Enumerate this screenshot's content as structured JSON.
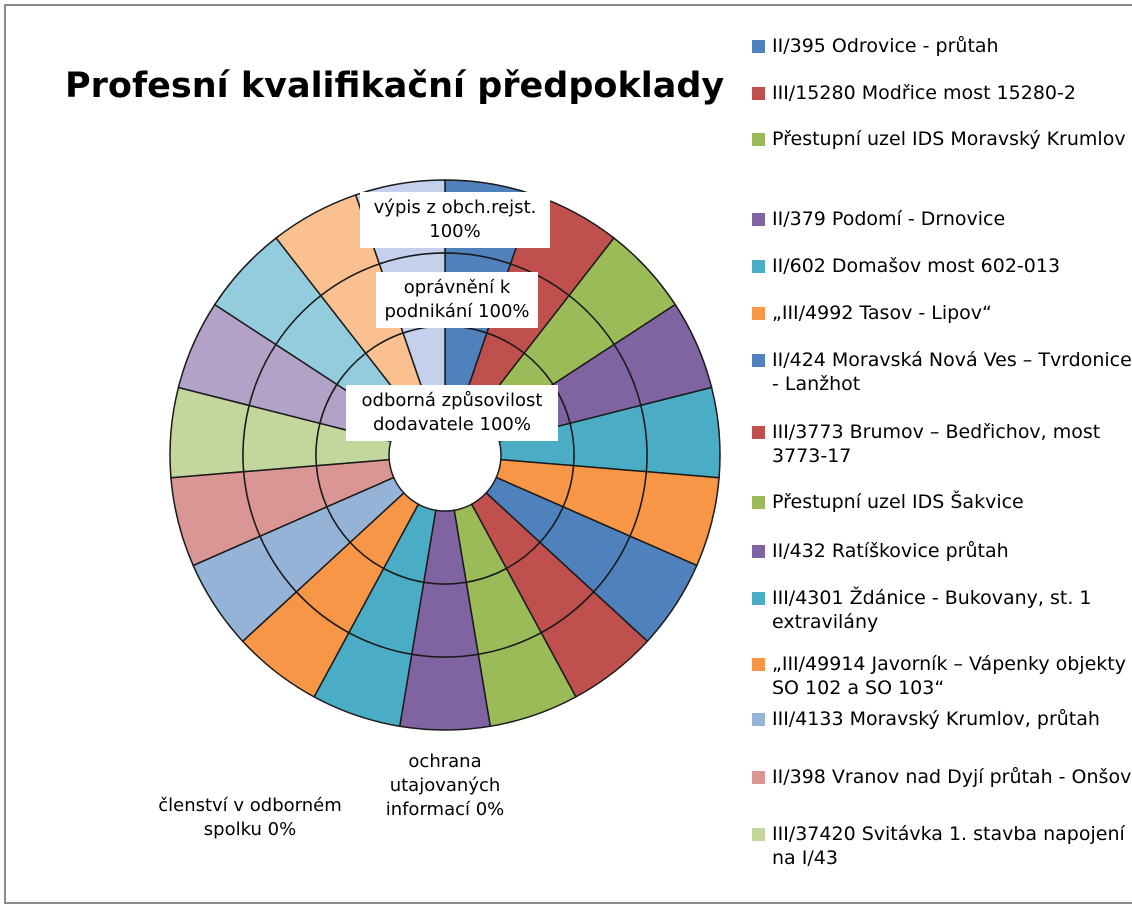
{
  "chart_data": {
    "type": "doughnut",
    "title": "Profesní kvalifikační předpoklady",
    "categories": [
      "II/395 Odrovice - průtah",
      "III/15280 Modřice most 15280-2",
      "Přestupní uzel IDS Moravský Krumlov",
      "II/379 Podomí - Drnovice",
      "II/602 Domašov most 602-013",
      "„III/4992 Tasov - Lipov“",
      "II/424 Moravská Nová Ves – Tvrdonice - Lanžhot",
      "III/3773 Brumov – Bedřichov, most 3773-17",
      "Přestupní uzel IDS Šakvice",
      "II/432 Ratíškovice průtah",
      "III/4301 Ždánice - Bukovany, st. 1 extravilány",
      "„III/49914 Javorník – Vápenky objekty SO 102 a SO 103“",
      "III/4133 Moravský Krumlov, průtah",
      "II/398 Vranov nad Dyjí průtah - Onšov",
      "III/37420 Svitávka 1. stavba napojení na I/43",
      null,
      null,
      null,
      null
    ],
    "colors": [
      "#4f81bd",
      "#c0504d",
      "#9bbb59",
      "#8064a2",
      "#4bacc6",
      "#f79646",
      "#4f81bd",
      "#c0504d",
      "#9bbb59",
      "#8064a2",
      "#4bacc6",
      "#f79646",
      "#95b3d7",
      "#d99694",
      "#c3d69b",
      "#b3a2c7",
      "#93cddd",
      "#fac090",
      "#c5d0ec"
    ],
    "series": [
      {
        "name": "výpis z obch.rejst.",
        "percent_label": "100%",
        "values": [
          100,
          100,
          100,
          100,
          100,
          100,
          100,
          100,
          100,
          100,
          100,
          100,
          100,
          100,
          100,
          100,
          100,
          100,
          100
        ]
      },
      {
        "name": "oprávnění k podnikání",
        "percent_label": "100%",
        "values": [
          100,
          100,
          100,
          100,
          100,
          100,
          100,
          100,
          100,
          100,
          100,
          100,
          100,
          100,
          100,
          100,
          100,
          100,
          100
        ]
      },
      {
        "name": "odborná způsovilost dodavatele",
        "percent_label": "100%",
        "values": [
          100,
          100,
          100,
          100,
          100,
          100,
          100,
          100,
          100,
          100,
          100,
          100,
          100,
          100,
          100,
          100,
          100,
          100,
          100
        ]
      },
      {
        "name": "ochrana utajovaných informací",
        "percent_label": "0%",
        "values": [
          0,
          0,
          0,
          0,
          0,
          0,
          0,
          0,
          0,
          0,
          0,
          0,
          0,
          0,
          0,
          0,
          0,
          0,
          0
        ]
      },
      {
        "name": "členství v odborném spolku",
        "percent_label": "0%",
        "values": [
          0,
          0,
          0,
          0,
          0,
          0,
          0,
          0,
          0,
          0,
          0,
          0,
          0,
          0,
          0,
          0,
          0,
          0,
          0
        ]
      }
    ]
  }
}
